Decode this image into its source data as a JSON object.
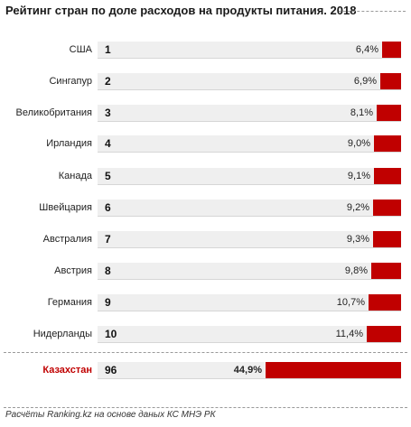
{
  "chart_data": {
    "type": "bar",
    "title": "Рейтинг стран по доле расходов на продукты питания. 2018",
    "categories": [
      "США",
      "Сингапур",
      "Великобритания",
      "Ирландия",
      "Канада",
      "Швейцария",
      "Австралия",
      "Австрия",
      "Германия",
      "Нидерланды",
      "Казахстан"
    ],
    "ranks": [
      1,
      2,
      3,
      4,
      5,
      6,
      7,
      8,
      9,
      10,
      96
    ],
    "values": [
      6.4,
      6.9,
      8.1,
      9.0,
      9.1,
      9.2,
      9.3,
      9.8,
      10.7,
      11.4,
      44.9
    ],
    "value_labels": [
      "6,4%",
      "6,9%",
      "8,1%",
      "9,0%",
      "9,1%",
      "9,2%",
      "9,3%",
      "9,8%",
      "10,7%",
      "11,4%",
      "44,9%"
    ],
    "highlight": "Казахстан",
    "colors": {
      "bar": "#c00000",
      "track": "#efefef",
      "highlight_text": "#c00000"
    }
  },
  "footer": "Расчёты Ranking.kz на основе даных КС МНЭ РК"
}
